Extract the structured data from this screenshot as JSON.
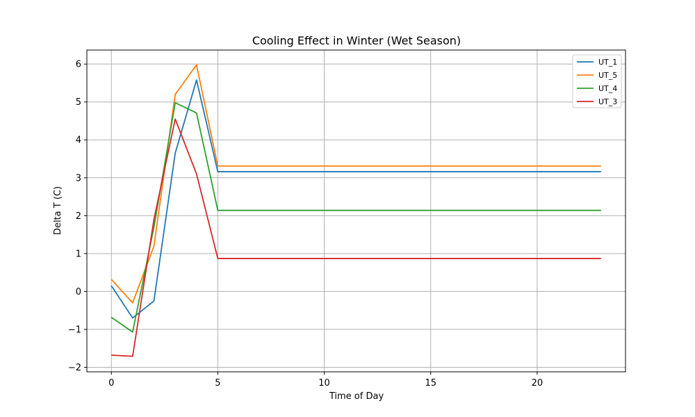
{
  "chart_data": {
    "type": "line",
    "title": "Cooling Effect in Winter (Wet Season)",
    "xlabel": "Time of Day",
    "ylabel": "Delta T (C)",
    "xlim": [
      -1.15,
      24.15
    ],
    "ylim": [
      -2.12,
      6.37
    ],
    "xticks": [
      0,
      5,
      10,
      15,
      20
    ],
    "yticks": [
      -2,
      -1,
      0,
      1,
      2,
      3,
      4,
      5,
      6
    ],
    "ytick_labels": [
      "−2",
      "−1",
      "0",
      "1",
      "2",
      "3",
      "4",
      "5",
      "6"
    ],
    "grid": true,
    "legend_position": "top-right",
    "x": [
      0,
      1,
      2,
      3,
      4,
      5,
      6,
      7,
      8,
      9,
      10,
      11,
      12,
      13,
      14,
      15,
      16,
      17,
      18,
      19,
      20,
      21,
      22,
      23
    ],
    "series": [
      {
        "name": "UT_1",
        "color": "#1f77b4",
        "values": [
          0.15,
          -0.7,
          -0.25,
          3.65,
          5.58,
          3.16,
          3.16,
          3.16,
          3.16,
          3.16,
          3.16,
          3.16,
          3.16,
          3.16,
          3.16,
          3.16,
          3.16,
          3.16,
          3.16,
          3.16,
          3.16,
          3.16,
          3.16,
          3.16
        ]
      },
      {
        "name": "UT_5",
        "color": "#ff7f0e",
        "values": [
          0.32,
          -0.3,
          1.2,
          5.2,
          5.98,
          3.31,
          3.31,
          3.31,
          3.31,
          3.31,
          3.31,
          3.31,
          3.31,
          3.31,
          3.31,
          3.31,
          3.31,
          3.31,
          3.31,
          3.31,
          3.31,
          3.31,
          3.31,
          3.31
        ]
      },
      {
        "name": "UT_4",
        "color": "#2ca02c",
        "values": [
          -0.68,
          -1.07,
          1.7,
          4.98,
          4.71,
          2.14,
          2.14,
          2.14,
          2.14,
          2.14,
          2.14,
          2.14,
          2.14,
          2.14,
          2.14,
          2.14,
          2.14,
          2.14,
          2.14,
          2.14,
          2.14,
          2.14,
          2.14,
          2.14
        ]
      },
      {
        "name": "UT_3",
        "color": "#d62728",
        "values": [
          -1.68,
          -1.71,
          1.9,
          4.55,
          3.1,
          0.87,
          0.87,
          0.87,
          0.87,
          0.87,
          0.87,
          0.87,
          0.87,
          0.87,
          0.87,
          0.87,
          0.87,
          0.87,
          0.87,
          0.87,
          0.87,
          0.87,
          0.87,
          0.87
        ]
      }
    ]
  }
}
